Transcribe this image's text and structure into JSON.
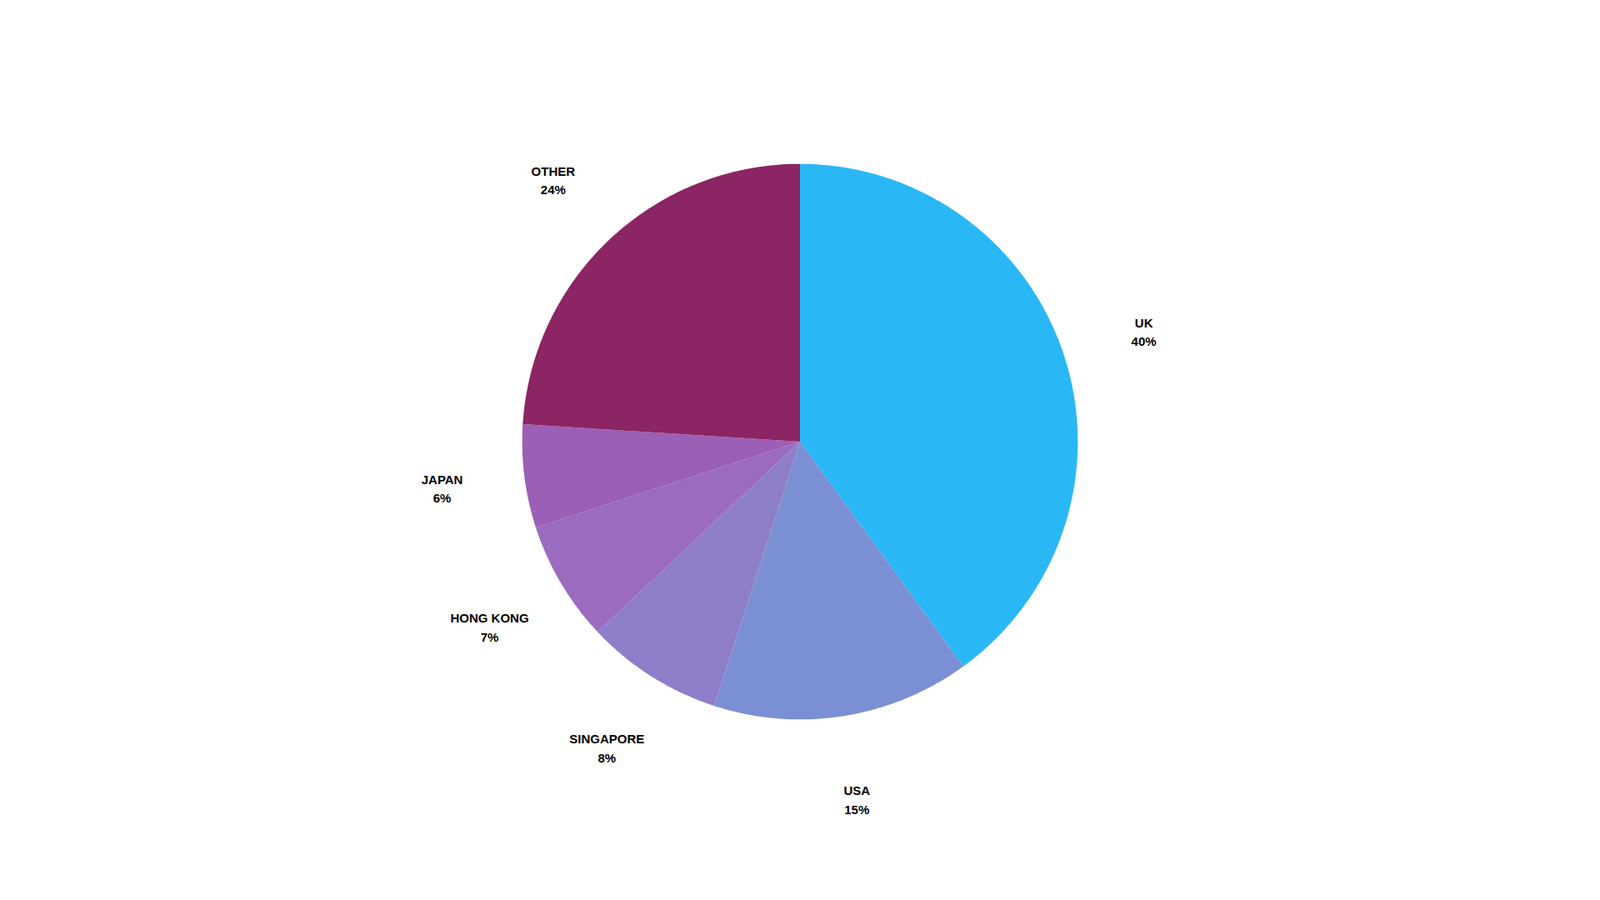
{
  "chart_data": {
    "type": "pie",
    "categories": [
      "UK",
      "USA",
      "SINGAPORE",
      "HONG KONG",
      "JAPAN",
      "OTHER"
    ],
    "values": [
      40,
      15,
      8,
      7,
      6,
      24
    ],
    "value_labels": [
      "40%",
      "15%",
      "8%",
      "7%",
      "6%",
      "24%"
    ],
    "colors": [
      "#29B8F5",
      "#7B8FD4",
      "#8E7DC8",
      "#9B6BBF",
      "#9B5FB5",
      "#8B2563"
    ],
    "data_labels": true
  }
}
